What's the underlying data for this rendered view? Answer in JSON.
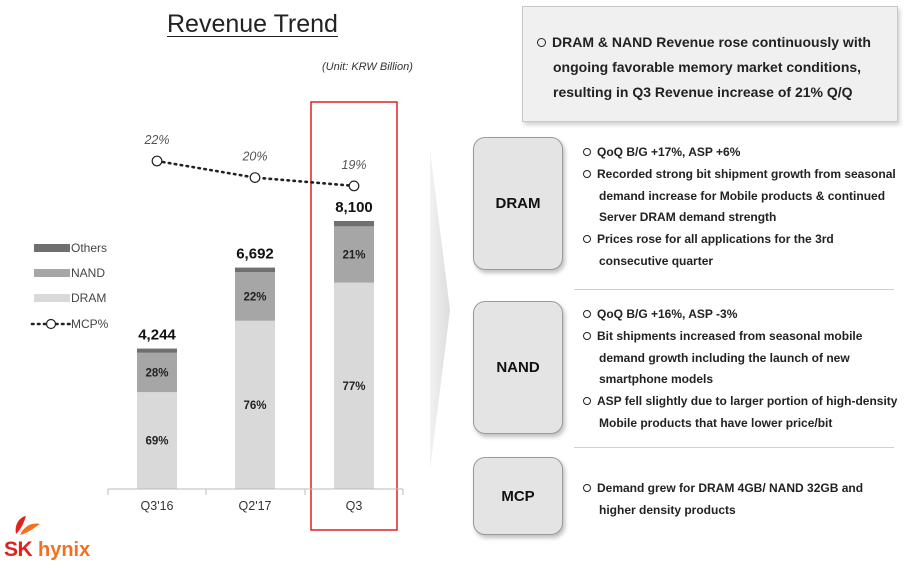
{
  "chart_data": {
    "type": "bar",
    "title": "Revenue Trend",
    "unit": "(Unit: KRW Billion)",
    "categories": [
      "Q3'16",
      "Q2'17",
      "Q3"
    ],
    "totals": [
      4244,
      6692,
      8100
    ],
    "total_labels": [
      "4,244",
      "6,692",
      "8,100"
    ],
    "series": [
      {
        "name": "DRAM",
        "values": [
          69,
          76,
          77
        ],
        "labels": [
          "69%",
          "76%",
          "77%"
        ],
        "color": "#d9d9d9"
      },
      {
        "name": "NAND",
        "values": [
          28,
          22,
          21
        ],
        "labels": [
          "28%",
          "22%",
          "21%"
        ],
        "color": "#a6a6a6"
      },
      {
        "name": "Others",
        "values": [
          3,
          2,
          2
        ],
        "labels": [
          "",
          "",
          ""
        ],
        "color": "#6f6f6f"
      }
    ],
    "mcp_line": {
      "name": "MCP%",
      "values": [
        22,
        20,
        19
      ],
      "labels": [
        "22%",
        "20%",
        "19%"
      ]
    },
    "legend": [
      "Others",
      "NAND",
      "DRAM",
      "MCP%"
    ],
    "legend_position": "left",
    "highlight_category": "Q3",
    "highlight_color": "#e02020",
    "ylim": [
      0,
      9000
    ],
    "grid": false
  },
  "summary": {
    "text": "DRAM & NAND Revenue rose continuously with ongoing favorable memory market conditions, resulting in Q3 Revenue increase of 21% Q/Q"
  },
  "sections": [
    {
      "label": "DRAM",
      "items": [
        "QoQ B/G +17%, ASP +6%",
        "Recorded strong bit shipment growth from seasonal demand increase for Mobile products & continued Server DRAM demand strength",
        "Prices rose for all applications for the 3rd consecutive quarter"
      ]
    },
    {
      "label": "NAND",
      "items": [
        "QoQ B/G +16%, ASP -3%",
        "Bit shipments increased from seasonal mobile demand growth including the launch of new smartphone models",
        "ASP fell slightly due to larger portion of high-density Mobile products that have lower price/bit"
      ]
    },
    {
      "label": "MCP",
      "items": [
        "Demand grew for DRAM 4GB/ NAND 32GB and higher density products"
      ]
    }
  ],
  "logo": {
    "brand_sk": "SK",
    "brand_hynix": "hynix",
    "accent": "#e2211c",
    "accent2": "#f37021"
  }
}
